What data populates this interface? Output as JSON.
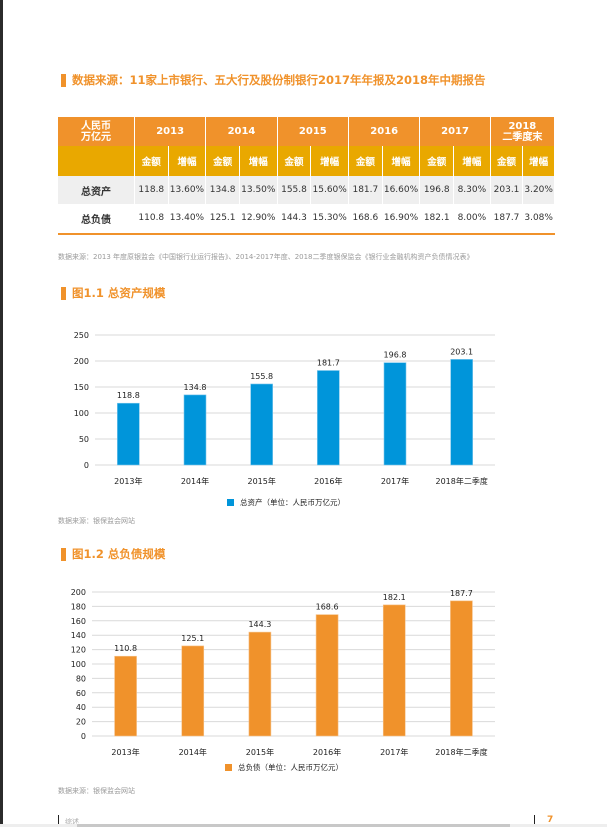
{
  "colors": {
    "accent": "#F0922B",
    "subheader": "#E9A800",
    "asset_bar": "#0095DA",
    "liability_bar": "#F0922B",
    "row_alt": "#EFEFEF"
  },
  "section_title": "数据来源：11家上市银行、五大行及股份制银行2017年年报及2018年中期报告",
  "table": {
    "corner": [
      "人民币",
      "万亿元"
    ],
    "years": [
      {
        "label": [
          "2013"
        ]
      },
      {
        "label": [
          "2014"
        ]
      },
      {
        "label": [
          "2015"
        ]
      },
      {
        "label": [
          "2016"
        ]
      },
      {
        "label": [
          "2017"
        ]
      },
      {
        "label": [
          "2018",
          "二季度末"
        ]
      }
    ],
    "sub_amount": "金额",
    "sub_growth": "增幅",
    "rows": [
      {
        "label": "总资产",
        "cells": [
          "118.8",
          "13.60%",
          "134.8",
          "13.50%",
          "155.8",
          "15.60%",
          "181.7",
          "16.60%",
          "196.8",
          "8.30%",
          "203.1",
          "3.20%"
        ]
      },
      {
        "label": "总负债",
        "cells": [
          "110.8",
          "13.40%",
          "125.1",
          "12.90%",
          "144.3",
          "15.30%",
          "168.6",
          "16.90%",
          "182.1",
          "8.00%",
          "187.7",
          "3.08%"
        ]
      }
    ]
  },
  "table_source": "数据来源：2013 年度原银监会《中国银行业运行报告》、2014-2017年度、2018二季度银保监会《银行业金融机构资产负债情况表》",
  "chart_data": [
    {
      "type": "bar",
      "title": "图1.1 总资产规模",
      "categories": [
        "2013年",
        "2014年",
        "2015年",
        "2016年",
        "2017年",
        "2018年二季度"
      ],
      "series": [
        {
          "name": "总资产（单位：人民币万亿元）",
          "values": [
            118.8,
            134.8,
            155.8,
            181.7,
            196.8,
            203.1
          ]
        }
      ],
      "value_labels": [
        "118.8",
        "134.8",
        "155.8",
        "181.7",
        "196.8",
        "203.1"
      ],
      "yticks": [
        "0",
        "50",
        "100",
        "150",
        "200",
        "250"
      ],
      "ylim": [
        0,
        250
      ],
      "grid": true,
      "legend": "bottom",
      "xlabel": "",
      "ylabel": "",
      "source": "数据来源：银保监会网站"
    },
    {
      "type": "bar",
      "title": "图1.2 总负债规模",
      "categories": [
        "2013年",
        "2014年",
        "2015年",
        "2016年",
        "2017年",
        "2018年二季度"
      ],
      "series": [
        {
          "name": "总负债（单位：人民币万亿元）",
          "values": [
            110.8,
            125.1,
            144.3,
            168.6,
            182.1,
            187.7
          ]
        }
      ],
      "value_labels": [
        "110.8",
        "125.1",
        "144.3",
        "168.6",
        "182.1",
        "187.7"
      ],
      "yticks": [
        "0",
        "20",
        "40",
        "60",
        "80",
        "100",
        "120",
        "140",
        "160",
        "180",
        "200"
      ],
      "ylim": [
        0,
        200
      ],
      "grid": true,
      "legend": "bottom",
      "xlabel": "",
      "ylabel": "",
      "source": "数据来源：银保监会网站"
    }
  ],
  "footer": {
    "section": "综述",
    "page": "7"
  }
}
